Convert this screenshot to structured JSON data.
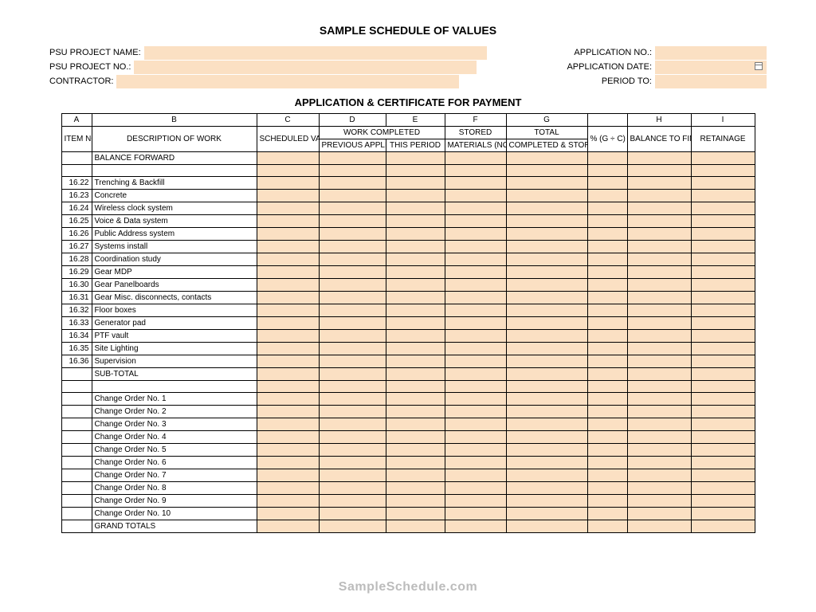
{
  "title": "SAMPLE SCHEDULE OF VALUES",
  "subtitle": "APPLICATION & CERTIFICATE FOR PAYMENT",
  "watermark": "SampleSchedule.com",
  "colors": {
    "fill": "#fbe0c3",
    "border": "#000000",
    "watermark": "#bcbcbc",
    "background": "#ffffff"
  },
  "meta_left": [
    {
      "label": "PSU PROJECT NAME:"
    },
    {
      "label": "PSU PROJECT NO.:"
    },
    {
      "label": "CONTRACTOR:"
    }
  ],
  "meta_right": [
    {
      "label": "APPLICATION NO.:"
    },
    {
      "label": "APPLICATION DATE:"
    },
    {
      "label": "PERIOD TO:"
    }
  ],
  "column_letters": [
    "A",
    "B",
    "C",
    "D",
    "E",
    "F",
    "G",
    "",
    "H",
    "I"
  ],
  "header_group": {
    "work_completed": "WORK COMPLETED",
    "stored": "STORED",
    "total": "TOTAL"
  },
  "headers": {
    "item_no": "ITEM NO.",
    "desc": "DESCRIPTION OF WORK",
    "sched": "SCHEDULED VALUE",
    "prev": "PREVIOUS APPLICATIONS (D + E)",
    "this_period": "THIS PERIOD",
    "materials": "MATERIALS (NOT IN D OR E)",
    "completed": "COMPLETED & STORED TO DATE (D + E + F)",
    "pct": "% (G ÷ C)",
    "balance": "BALANCE TO FINISH (C - G)",
    "retainage": "RETAINAGE"
  },
  "rows": [
    {
      "no": "",
      "desc": "BALANCE FORWARD",
      "fill": true,
      "indent": false,
      "empty_after": true
    },
    {
      "no": "16.22",
      "desc": "Trenching & Backfill",
      "fill": true,
      "indent": true
    },
    {
      "no": "16.23",
      "desc": "Concrete",
      "fill": true,
      "indent": true
    },
    {
      "no": "16.24",
      "desc": "Wireless clock system",
      "fill": true,
      "indent": true
    },
    {
      "no": "16.25",
      "desc": "Voice & Data system",
      "fill": true,
      "indent": true
    },
    {
      "no": "16.26",
      "desc": "Public Address system",
      "fill": true,
      "indent": true
    },
    {
      "no": "16.27",
      "desc": "Systems install",
      "fill": true,
      "indent": true
    },
    {
      "no": "16.28",
      "desc": "Coordination study",
      "fill": true,
      "indent": true
    },
    {
      "no": "16.29",
      "desc": "Gear MDP",
      "fill": true,
      "indent": true
    },
    {
      "no": "16.30",
      "desc": "Gear Panelboards",
      "fill": true,
      "indent": true
    },
    {
      "no": "16.31",
      "desc": "Gear Misc. disconnects, contacts",
      "fill": true,
      "indent": true
    },
    {
      "no": "16.32",
      "desc": "Floor boxes",
      "fill": true,
      "indent": true
    },
    {
      "no": "16.33",
      "desc": "Generator pad",
      "fill": true,
      "indent": true
    },
    {
      "no": "16.34",
      "desc": "PTF vault",
      "fill": true,
      "indent": true
    },
    {
      "no": "16.35",
      "desc": "Site Lighting",
      "fill": true,
      "indent": true
    },
    {
      "no": "16.36",
      "desc": "Supervision",
      "fill": true,
      "indent": true
    },
    {
      "no": "",
      "desc": "SUB-TOTAL",
      "fill": true,
      "indent": false,
      "empty_after": true
    },
    {
      "no": "",
      "desc": "Change Order No. 1",
      "fill": true,
      "indent": true
    },
    {
      "no": "",
      "desc": "Change Order No. 2",
      "fill": true,
      "indent": true
    },
    {
      "no": "",
      "desc": "Change Order No. 3",
      "fill": true,
      "indent": true
    },
    {
      "no": "",
      "desc": "Change Order No. 4",
      "fill": true,
      "indent": true
    },
    {
      "no": "",
      "desc": "Change Order No. 5",
      "fill": true,
      "indent": true
    },
    {
      "no": "",
      "desc": "Change Order No. 6",
      "fill": true,
      "indent": true
    },
    {
      "no": "",
      "desc": "Change Order No. 7",
      "fill": true,
      "indent": true
    },
    {
      "no": "",
      "desc": "Change Order No. 8",
      "fill": true,
      "indent": true
    },
    {
      "no": "",
      "desc": "Change Order No. 9",
      "fill": true,
      "indent": true
    },
    {
      "no": "",
      "desc": "Change Order No. 10",
      "fill": true,
      "indent": true
    },
    {
      "no": "",
      "desc": "GRAND TOTALS",
      "fill": true,
      "indent": false
    }
  ]
}
